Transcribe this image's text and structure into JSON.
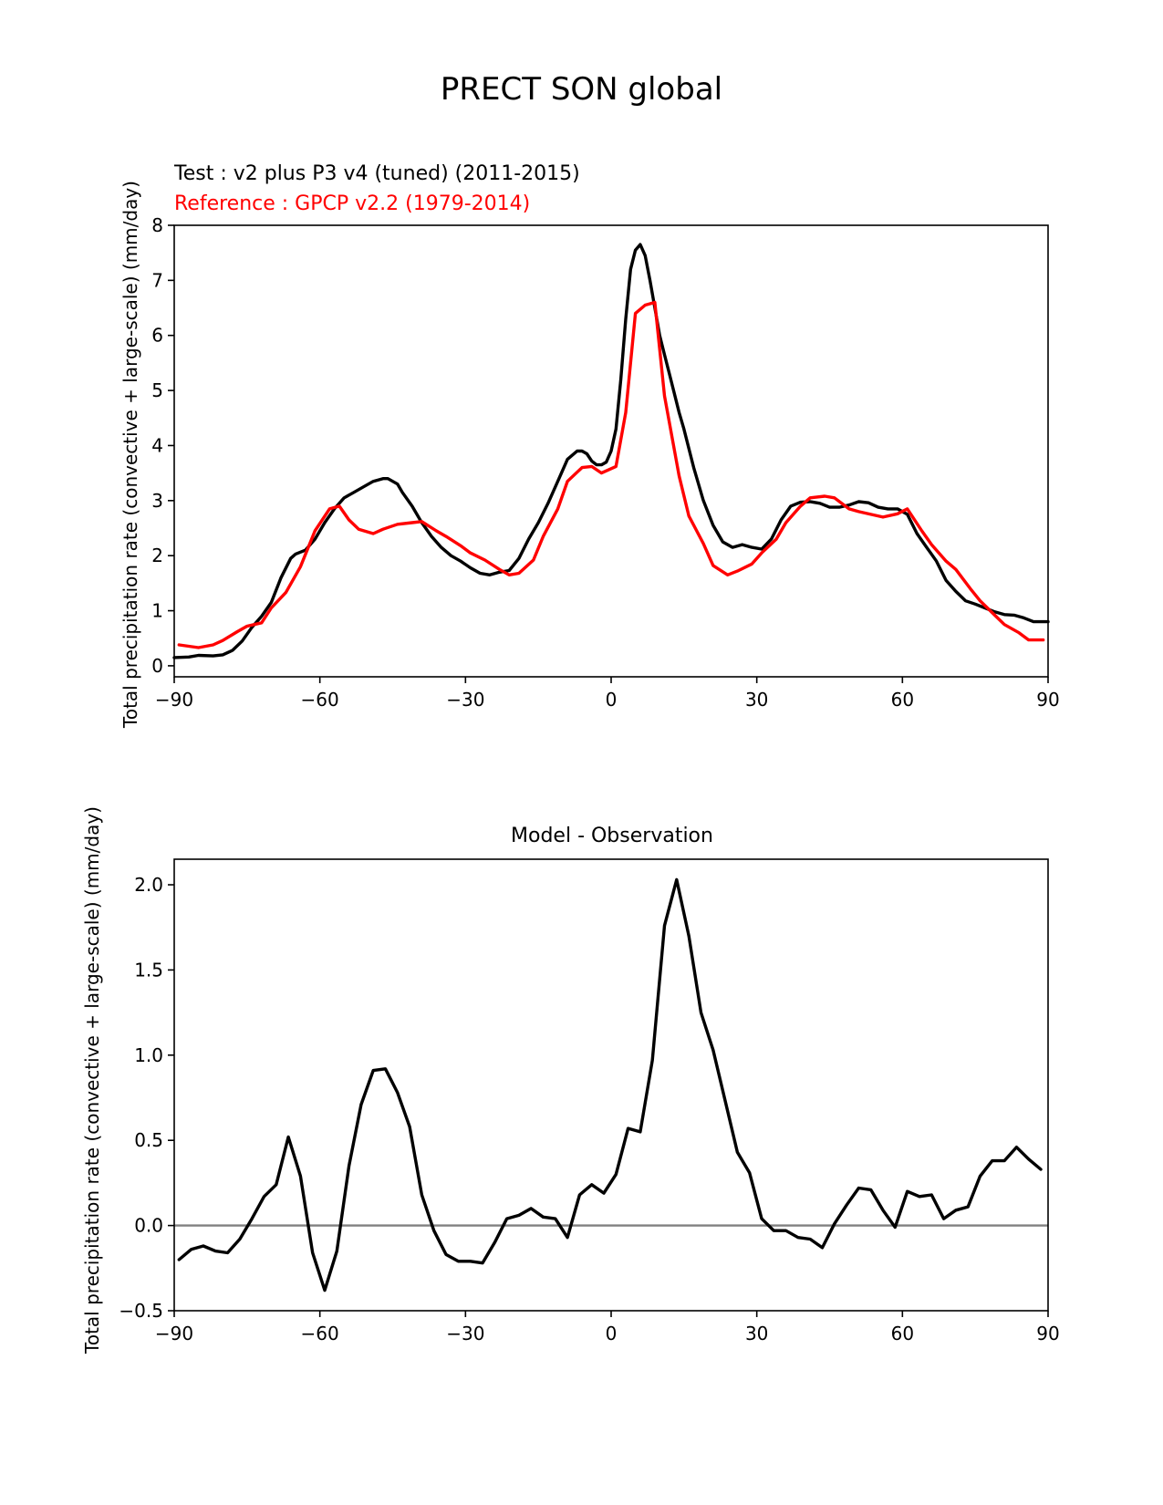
{
  "figure": {
    "title": "PRECT SON global"
  },
  "chart_data": [
    {
      "type": "line",
      "test_label": "Test : v2 plus P3 v4 (tuned) (2011-2015)",
      "reference_label": "Reference : GPCP v2.2 (1979-2014)",
      "ylabel": "Total precipitation rate (convective + large-scale) (mm/day)",
      "xlabel": "",
      "xlim": [
        -90,
        90
      ],
      "ylim": [
        -0.2,
        8
      ],
      "xticks": [
        "−90",
        "−60",
        "−30",
        "0",
        "30",
        "60",
        "90"
      ],
      "yticks": [
        "0",
        "1",
        "2",
        "3",
        "4",
        "5",
        "6",
        "7",
        "8"
      ],
      "series": [
        {
          "color": "#000000",
          "x": [
            -90,
            -87,
            -85,
            -82,
            -80,
            -78,
            -76,
            -74,
            -72,
            -70,
            -68,
            -66,
            -65,
            -63,
            -61,
            -59,
            -57,
            -55,
            -53,
            -51,
            -49,
            -47,
            -46,
            -44,
            -43,
            -41,
            -39,
            -37,
            -35,
            -33,
            -31,
            -29,
            -27,
            -25,
            -23,
            -21,
            -19,
            -17,
            -15,
            -13,
            -11,
            -9,
            -7,
            -6,
            -5,
            -4,
            -3,
            -2,
            -1,
            0,
            1,
            2,
            3,
            4,
            5,
            6,
            7,
            8,
            9,
            10,
            11,
            12,
            13,
            14,
            15,
            17,
            19,
            21,
            23,
            25,
            27,
            29,
            31,
            33,
            35,
            37,
            39,
            41,
            43,
            45,
            47,
            49,
            51,
            53,
            55,
            57,
            59,
            61,
            63,
            65,
            67,
            69,
            71,
            73,
            75,
            77,
            79,
            81,
            83,
            85,
            87,
            89,
            90
          ],
          "y": [
            0.15,
            0.16,
            0.19,
            0.18,
            0.2,
            0.28,
            0.45,
            0.7,
            0.9,
            1.15,
            1.6,
            1.95,
            2.03,
            2.1,
            2.3,
            2.6,
            2.85,
            3.05,
            3.15,
            3.25,
            3.35,
            3.4,
            3.4,
            3.3,
            3.15,
            2.9,
            2.6,
            2.35,
            2.15,
            2.0,
            1.9,
            1.78,
            1.68,
            1.65,
            1.7,
            1.73,
            1.95,
            2.3,
            2.6,
            2.95,
            3.35,
            3.75,
            3.9,
            3.9,
            3.85,
            3.72,
            3.65,
            3.65,
            3.7,
            3.9,
            4.3,
            5.2,
            6.3,
            7.2,
            7.55,
            7.65,
            7.45,
            7.0,
            6.5,
            6.0,
            5.65,
            5.3,
            4.95,
            4.6,
            4.3,
            3.6,
            3.0,
            2.55,
            2.25,
            2.15,
            2.2,
            2.15,
            2.12,
            2.3,
            2.65,
            2.9,
            2.97,
            2.98,
            2.95,
            2.88,
            2.88,
            2.92,
            2.98,
            2.96,
            2.88,
            2.85,
            2.85,
            2.75,
            2.4,
            2.15,
            1.9,
            1.55,
            1.35,
            1.18,
            1.12,
            1.05,
            0.98,
            0.93,
            0.92,
            0.87,
            0.8,
            0.8,
            0.8
          ]
        },
        {
          "color": "#ff0000",
          "x": [
            -89,
            -85,
            -82,
            -80,
            -77,
            -75,
            -72,
            -70,
            -67,
            -64,
            -61,
            -58,
            -56,
            -54,
            -52,
            -49,
            -47,
            -44,
            -41,
            -39,
            -36,
            -34,
            -31,
            -29,
            -26,
            -23,
            -21,
            -19,
            -16,
            -14,
            -11,
            -9,
            -6,
            -4,
            -2,
            1,
            3,
            5,
            7,
            9,
            11,
            14,
            16,
            19,
            21,
            24,
            26,
            29,
            31,
            34,
            36,
            39,
            41,
            44,
            46,
            49,
            51,
            54,
            56,
            59,
            61,
            64,
            66,
            69,
            71,
            74,
            76,
            79,
            81,
            84,
            86,
            89
          ],
          "y": [
            0.38,
            0.33,
            0.38,
            0.46,
            0.62,
            0.72,
            0.78,
            1.05,
            1.33,
            1.8,
            2.45,
            2.85,
            2.9,
            2.65,
            2.48,
            2.4,
            2.48,
            2.57,
            2.6,
            2.62,
            2.45,
            2.35,
            2.18,
            2.05,
            1.92,
            1.75,
            1.65,
            1.68,
            1.92,
            2.35,
            2.85,
            3.35,
            3.6,
            3.62,
            3.5,
            3.62,
            4.6,
            6.4,
            6.55,
            6.6,
            4.9,
            3.45,
            2.72,
            2.22,
            1.82,
            1.65,
            1.72,
            1.85,
            2.05,
            2.3,
            2.6,
            2.9,
            3.05,
            3.08,
            3.05,
            2.85,
            2.8,
            2.74,
            2.7,
            2.76,
            2.85,
            2.45,
            2.2,
            1.9,
            1.75,
            1.4,
            1.18,
            0.92,
            0.75,
            0.6,
            0.47,
            0.47
          ]
        }
      ]
    },
    {
      "type": "line",
      "title": "Model - Observation",
      "ylabel": "Total precipitation rate (convective + large-scale) (mm/day)",
      "xlabel": "",
      "xlim": [
        -90,
        90
      ],
      "ylim": [
        -0.5,
        2.15
      ],
      "xticks": [
        "−90",
        "−60",
        "−30",
        "0",
        "30",
        "60",
        "90"
      ],
      "yticks": [
        "−0.5",
        "0.0",
        "0.5",
        "1.0",
        "1.5",
        "2.0"
      ],
      "zero_line_color": "#808080",
      "series": [
        {
          "color": "#000000",
          "x": [
            -89,
            -86.5,
            -84,
            -81.5,
            -79,
            -76.5,
            -74,
            -71.5,
            -69,
            -66.5,
            -64,
            -61.5,
            -59,
            -56.5,
            -54,
            -51.5,
            -49,
            -46.5,
            -44,
            -41.5,
            -39,
            -36.5,
            -34,
            -31.5,
            -29,
            -26.5,
            -24,
            -21.5,
            -19,
            -16.5,
            -14,
            -11.5,
            -9,
            -6.5,
            -4,
            -1.5,
            1,
            3.5,
            6,
            8.5,
            11,
            13.5,
            16,
            18.5,
            21,
            23.5,
            26,
            28.5,
            31,
            33.5,
            36,
            38.5,
            41,
            43.5,
            46,
            48.5,
            51,
            53.5,
            56,
            58.5,
            61,
            63.5,
            66,
            68.5,
            71,
            73.5,
            76,
            78.5,
            81,
            83.5,
            86,
            88.5
          ],
          "y": [
            -0.2,
            -0.14,
            -0.12,
            -0.15,
            -0.16,
            -0.08,
            0.04,
            0.17,
            0.24,
            0.52,
            0.29,
            -0.16,
            -0.38,
            -0.15,
            0.35,
            0.71,
            0.91,
            0.92,
            0.78,
            0.58,
            0.18,
            -0.03,
            -0.17,
            -0.21,
            -0.21,
            -0.22,
            -0.1,
            0.04,
            0.06,
            0.1,
            0.05,
            0.04,
            -0.07,
            0.18,
            0.24,
            0.19,
            0.3,
            0.57,
            0.55,
            0.97,
            1.76,
            2.03,
            1.7,
            1.25,
            1.03,
            0.73,
            0.43,
            0.31,
            0.04,
            -0.03,
            -0.03,
            -0.07,
            -0.08,
            -0.13,
            0.01,
            0.12,
            0.22,
            0.21,
            0.09,
            -0.01,
            0.2,
            0.17,
            0.18,
            0.04,
            0.09,
            0.11,
            0.29,
            0.38,
            0.38,
            0.46,
            0.39,
            0.33
          ]
        }
      ]
    }
  ]
}
